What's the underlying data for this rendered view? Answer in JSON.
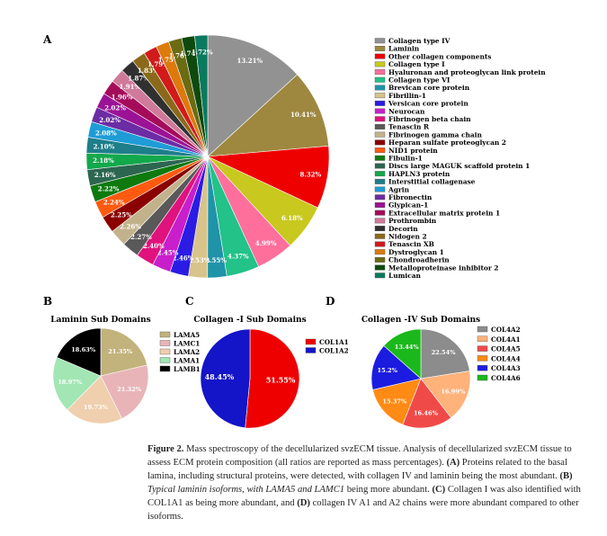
{
  "panel_labels": [
    "A",
    "B",
    "C",
    "D"
  ],
  "chart_data": [
    {
      "type": "pie",
      "panel": "A",
      "title": "",
      "labels": [
        "Collagen type IV",
        "Laminin",
        "Other collagen components",
        "Collagen type I",
        "Hyaluronan and proteoglycan link protein",
        "Collagen type VI",
        "Brevican core protein",
        "Fibrillin-1",
        "Versican core protein",
        "Neurocan",
        "Fibrinogen beta chain",
        "Tenascin R",
        "Fibrinogen gamma chain",
        "Heparan sulfate proteoglycan 2",
        "NID1 protein",
        "Fibulin-1",
        "Discs large MAGUK scaffold protein 1",
        "HAPLN3 protein",
        "Interstitial collagenase",
        "Agrin",
        "Fibronectin",
        "Glypican-1",
        "Extracellular matrix protein 1",
        "Prothrombin",
        "Decorin",
        "Nidogen 2",
        "Tenascin XB",
        "Dystroglycan 1",
        "Chondroadherin",
        "Metalloproteinase inhibitor 2",
        "Lumican"
      ],
      "values": [
        13.21,
        10.41,
        8.32,
        6.18,
        4.99,
        4.37,
        2.55,
        2.53,
        2.46,
        2.45,
        2.4,
        2.27,
        2.26,
        2.25,
        2.24,
        2.22,
        2.16,
        2.18,
        2.1,
        2.08,
        2.02,
        2.02,
        1.96,
        1.91,
        1.87,
        1.83,
        1.79,
        1.75,
        1.76,
        1.74,
        1.72
      ],
      "value_labels": [
        "13.21%",
        "10.41%",
        "8.32%",
        "6.18%",
        "4.99%",
        "4.37%",
        "2.55%",
        "2.53%",
        "2.46%",
        "2.45%",
        "2.40%",
        "2.27%",
        "2.26%",
        "2.25%",
        "2.24%",
        "2.22%",
        "2.16%",
        "2.18%",
        "2.10%",
        "2.08%",
        "2.02%",
        "2.02%",
        "1.96%",
        "1.91%",
        "1.87%",
        "1.83%",
        "1.79%",
        "1.75%",
        "1.76%",
        "1.74%",
        "1.72%"
      ],
      "colors": [
        "#929292",
        "#9e8840",
        "#ee0000",
        "#c8c81e",
        "#ff6f9c",
        "#22c289",
        "#1f93a8",
        "#d8c48a",
        "#2a1ce4",
        "#c81ecc",
        "#e0127d",
        "#595959",
        "#c2b28c",
        "#8a0000",
        "#ff5a10",
        "#0e7a0e",
        "#2c6650",
        "#12a84c",
        "#1e7e8a",
        "#1e9cd6",
        "#6c2ca4",
        "#9c1296",
        "#a40c5a",
        "#d07a9a",
        "#303030",
        "#8a6a1a",
        "#d11a1a",
        "#dc7a0c",
        "#6b6b14",
        "#0e4a0e",
        "#0a7a5e"
      ],
      "legend_position": "right"
    },
    {
      "type": "pie",
      "panel": "B",
      "title": "Laminin Sub Domains",
      "labels": [
        "LAMA5",
        "LAMC1",
        "LAMA2",
        "LAMA1",
        "LAMB1"
      ],
      "values": [
        21.35,
        21.32,
        19.73,
        18.97,
        18.63
      ],
      "value_labels": [
        "21.35%",
        "21.32%",
        "19.73%",
        "18.97%",
        "18.63%"
      ],
      "colors": [
        "#c2b27c",
        "#e8b4b8",
        "#efcfae",
        "#a2e6b4",
        "#000000"
      ],
      "legend_position": "right"
    },
    {
      "type": "pie",
      "panel": "C",
      "title": "Collagen -I Sub Domains",
      "labels": [
        "COL1A1",
        "COL1A2"
      ],
      "values": [
        51.55,
        48.45
      ],
      "value_labels": [
        "51.55%",
        "48.45%"
      ],
      "colors": [
        "#ee0000",
        "#1414c8"
      ],
      "legend_position": "right"
    },
    {
      "type": "pie",
      "panel": "D",
      "title": "Collagen -IV Sub Domains",
      "labels": [
        "COL4A2",
        "COL4A1",
        "COL4A5",
        "COL4A4",
        "COL4A3",
        "COL4A6"
      ],
      "values": [
        22.54,
        16.99,
        16.46,
        15.37,
        15.2,
        13.44
      ],
      "value_labels": [
        "22.54%",
        "16.99%",
        "16.46%",
        "15.37%",
        "15.2%",
        "13.44%"
      ],
      "colors": [
        "#8c8c8c",
        "#ffb27a",
        "#f04a48",
        "#ff8a14",
        "#1c1ce0",
        "#1bb81b"
      ],
      "legend_position": "right"
    }
  ],
  "caption": {
    "figure_label": "Figure 2.",
    "text_1": " Mass spectroscopy of the decellularized svzECM tissue. Analysis of decellularized svzECM tissue to assess ECM protein composition (all ratios are reported as mass percentages). ",
    "A_label": "(A)",
    "text_2": " Proteins related to the basal lamina, including structural proteins, were detected, with collagen IV and laminin being the most abundant. ",
    "B_label": "(B)",
    "text_3": " Typical laminin isoforms, with ",
    "lama5": "LAMA5",
    "text_4": " and ",
    "lamc1": "LAMC1",
    "text_5": " being more abundant. ",
    "C_label": "(C)",
    "text_6": " Collagen I was also identified with COL1A1 as being more abundant, and ",
    "D_label": "(D)",
    "text_7": " collagen IV A1 and A2 chains were more abundant compared to other isoforms."
  }
}
